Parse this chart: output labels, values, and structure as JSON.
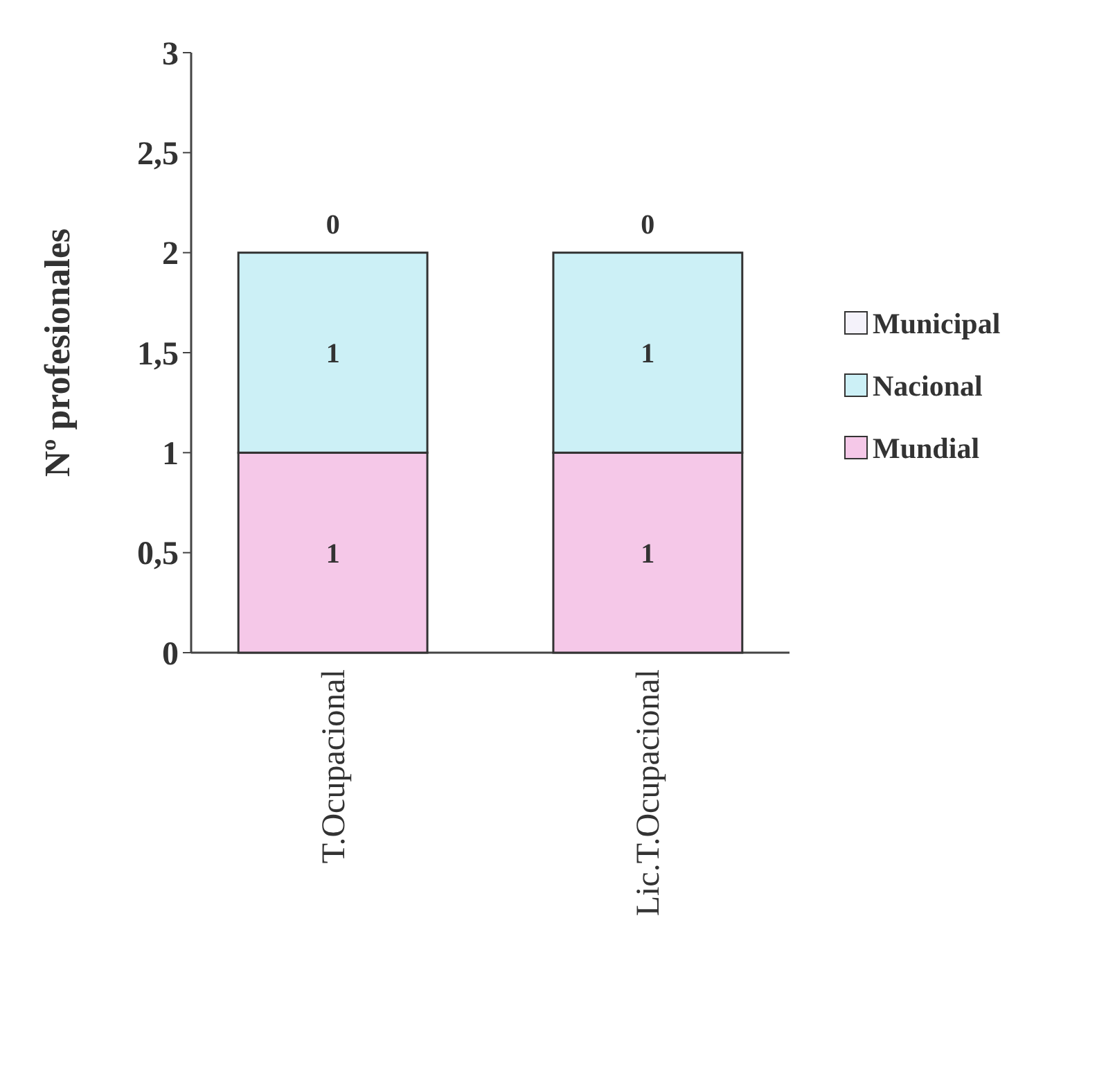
{
  "chart_data": {
    "type": "bar",
    "stacked": true,
    "ylabel": "Nº profesionales",
    "categories": [
      "T.Ocupacional",
      "Lic.T.Ocupacional"
    ],
    "series": [
      {
        "name": "Mundial",
        "color": "#f5c8e8",
        "values": [
          1,
          1
        ]
      },
      {
        "name": "Nacional",
        "color": "#ccf0f6",
        "values": [
          1,
          1
        ]
      },
      {
        "name": "Municipal",
        "color": "#f4f2fa",
        "values": [
          0,
          0
        ]
      }
    ],
    "ylim": [
      0,
      3
    ],
    "yticks": [
      0,
      {
        "value": 0.5,
        "label": "0,5"
      },
      1,
      {
        "value": 1.5,
        "label": "1,5"
      },
      2,
      {
        "value": 2.5,
        "label": "2,5"
      },
      3
    ],
    "data_labels": true,
    "legend": "right",
    "grid": false
  }
}
